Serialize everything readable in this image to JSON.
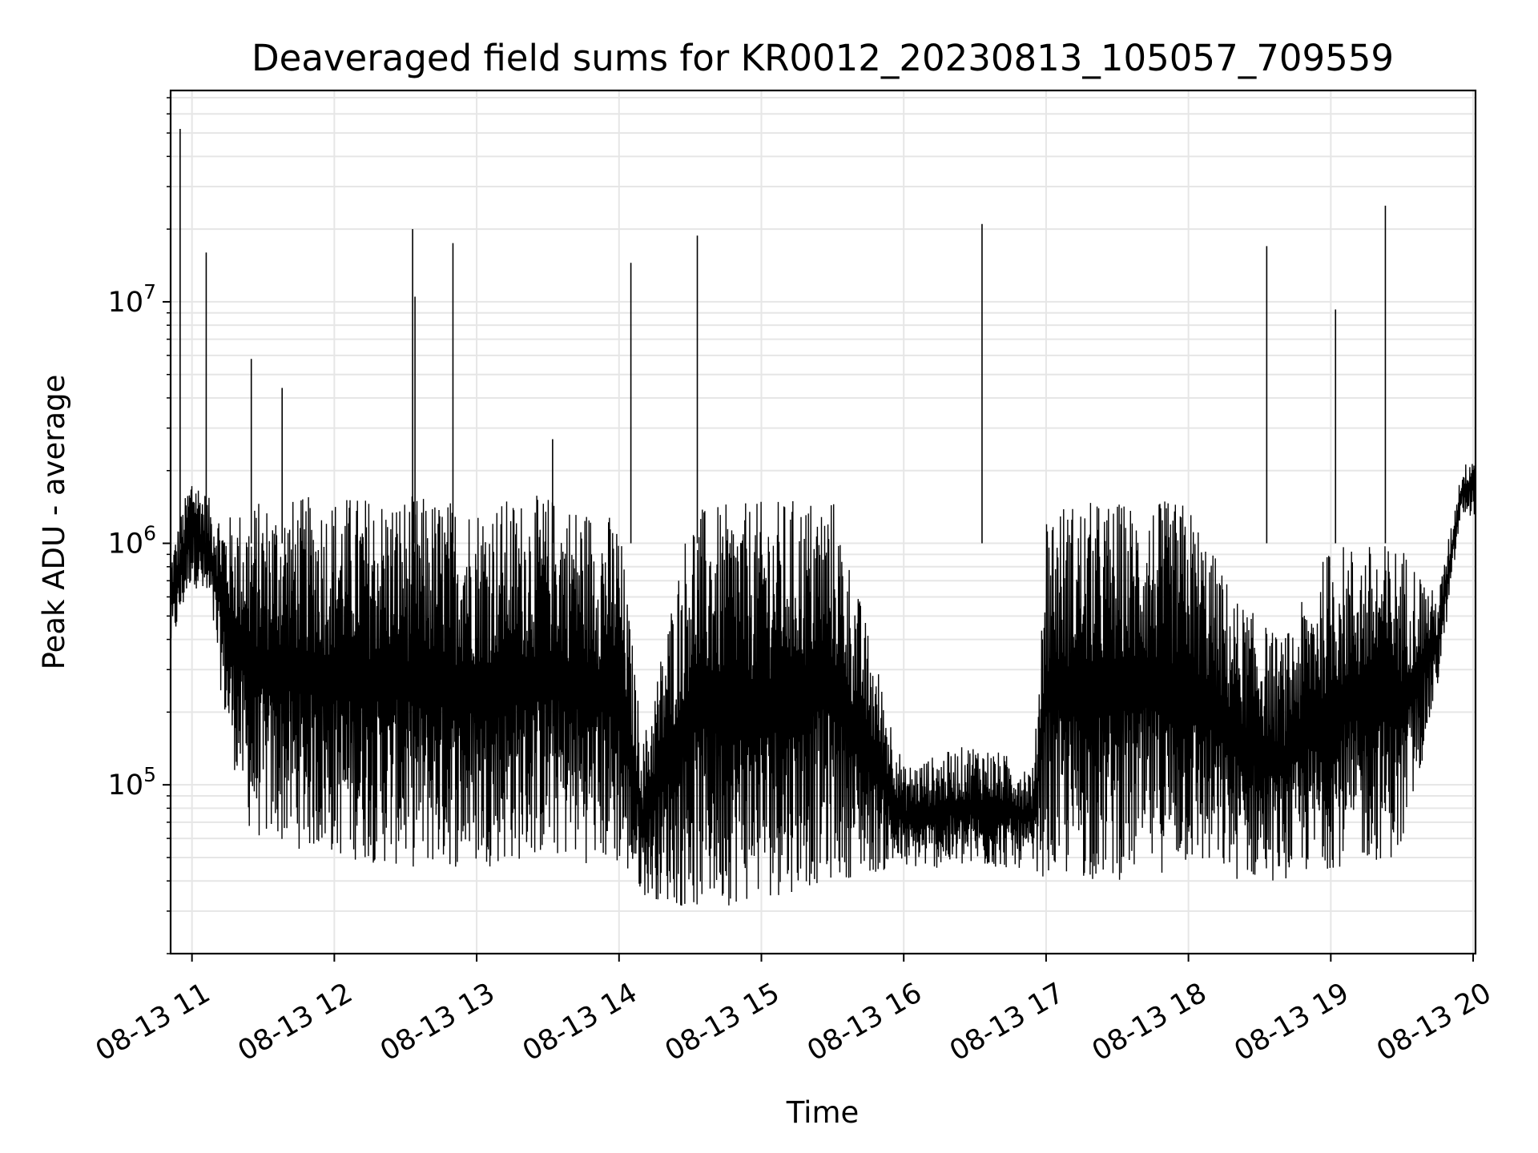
{
  "chart_data": {
    "type": "line",
    "title": "Deaveraged field sums for KR0012_20230813_105057_709559",
    "xlabel": "Time",
    "ylabel": "Peak ADU - average",
    "y_scale": "log",
    "ylim": [
      20000,
      75000000
    ],
    "xlim": [
      "2023-08-13 10:51",
      "2023-08-13 20:01"
    ],
    "grid": true,
    "line_color": "#000000",
    "grid_color": "#e6e6e6",
    "x_ticks": [
      {
        "value": "2023-08-13 11:00",
        "label": "08-13 11"
      },
      {
        "value": "2023-08-13 12:00",
        "label": "08-13 12"
      },
      {
        "value": "2023-08-13 13:00",
        "label": "08-13 13"
      },
      {
        "value": "2023-08-13 14:00",
        "label": "08-13 14"
      },
      {
        "value": "2023-08-13 15:00",
        "label": "08-13 15"
      },
      {
        "value": "2023-08-13 16:00",
        "label": "08-13 16"
      },
      {
        "value": "2023-08-13 17:00",
        "label": "08-13 17"
      },
      {
        "value": "2023-08-13 18:00",
        "label": "08-13 18"
      },
      {
        "value": "2023-08-13 19:00",
        "label": "08-13 19"
      },
      {
        "value": "2023-08-13 20:00",
        "label": "08-13 20"
      }
    ],
    "y_ticks": [
      {
        "value": 100000,
        "base": "10",
        "exp": "5"
      },
      {
        "value": 1000000,
        "base": "10",
        "exp": "6"
      },
      {
        "value": 10000000,
        "base": "10",
        "exp": "7"
      }
    ],
    "envelope": [
      {
        "x": "2023-08-13 10:51",
        "low": 350000,
        "high": 900000
      },
      {
        "x": "2023-08-13 11:00",
        "low": 700000,
        "high": 2000000
      },
      {
        "x": "2023-08-13 11:08",
        "low": 500000,
        "high": 1500000
      },
      {
        "x": "2023-08-13 11:15",
        "low": 150000,
        "high": 1300000
      },
      {
        "x": "2023-08-13 11:25",
        "low": 60000,
        "high": 1500000
      },
      {
        "x": "2023-08-13 12:00",
        "low": 50000,
        "high": 1600000
      },
      {
        "x": "2023-08-13 12:30",
        "low": 45000,
        "high": 1600000
      },
      {
        "x": "2023-08-13 13:00",
        "low": 45000,
        "high": 1500000
      },
      {
        "x": "2023-08-13 13:30",
        "low": 50000,
        "high": 1600000
      },
      {
        "x": "2023-08-13 14:00",
        "low": 45000,
        "high": 1300000
      },
      {
        "x": "2023-08-13 14:10",
        "low": 35000,
        "high": 150000
      },
      {
        "x": "2023-08-13 14:30",
        "low": 30000,
        "high": 1400000
      },
      {
        "x": "2023-08-13 15:00",
        "low": 33000,
        "high": 1500000
      },
      {
        "x": "2023-08-13 15:30",
        "low": 40000,
        "high": 1600000
      },
      {
        "x": "2023-08-13 16:00",
        "low": 45000,
        "high": 120000
      },
      {
        "x": "2023-08-13 16:30",
        "low": 45000,
        "high": 150000
      },
      {
        "x": "2023-08-13 16:55",
        "low": 45000,
        "high": 120000
      },
      {
        "x": "2023-08-13 17:00",
        "low": 40000,
        "high": 1500000
      },
      {
        "x": "2023-08-13 17:30",
        "low": 40000,
        "high": 1500000
      },
      {
        "x": "2023-08-13 18:00",
        "low": 45000,
        "high": 1500000
      },
      {
        "x": "2023-08-13 18:20",
        "low": 40000,
        "high": 600000
      },
      {
        "x": "2023-08-13 18:40",
        "low": 40000,
        "high": 400000
      },
      {
        "x": "2023-08-13 19:00",
        "low": 45000,
        "high": 1000000
      },
      {
        "x": "2023-08-13 19:30",
        "low": 50000,
        "high": 1000000
      },
      {
        "x": "2023-08-13 19:45",
        "low": 250000,
        "high": 600000
      },
      {
        "x": "2023-08-13 19:55",
        "low": 1300000,
        "high": 2000000
      },
      {
        "x": "2023-08-13 20:01",
        "low": 1300000,
        "high": 2500000
      }
    ],
    "spikes": [
      {
        "x": "2023-08-13 10:55",
        "y": 52000000
      },
      {
        "x": "2023-08-13 11:06",
        "y": 16000000
      },
      {
        "x": "2023-08-13 11:25",
        "y": 5800000
      },
      {
        "x": "2023-08-13 11:38",
        "y": 4400000
      },
      {
        "x": "2023-08-13 12:33",
        "y": 20000000
      },
      {
        "x": "2023-08-13 12:34",
        "y": 10500000
      },
      {
        "x": "2023-08-13 12:50",
        "y": 17500000
      },
      {
        "x": "2023-08-13 13:32",
        "y": 2700000
      },
      {
        "x": "2023-08-13 14:05",
        "y": 14500000
      },
      {
        "x": "2023-08-13 14:33",
        "y": 18800000
      },
      {
        "x": "2023-08-13 16:33",
        "y": 21000000
      },
      {
        "x": "2023-08-13 18:33",
        "y": 17000000
      },
      {
        "x": "2023-08-13 19:02",
        "y": 9300000
      },
      {
        "x": "2023-08-13 19:23",
        "y": 25000000
      }
    ]
  }
}
